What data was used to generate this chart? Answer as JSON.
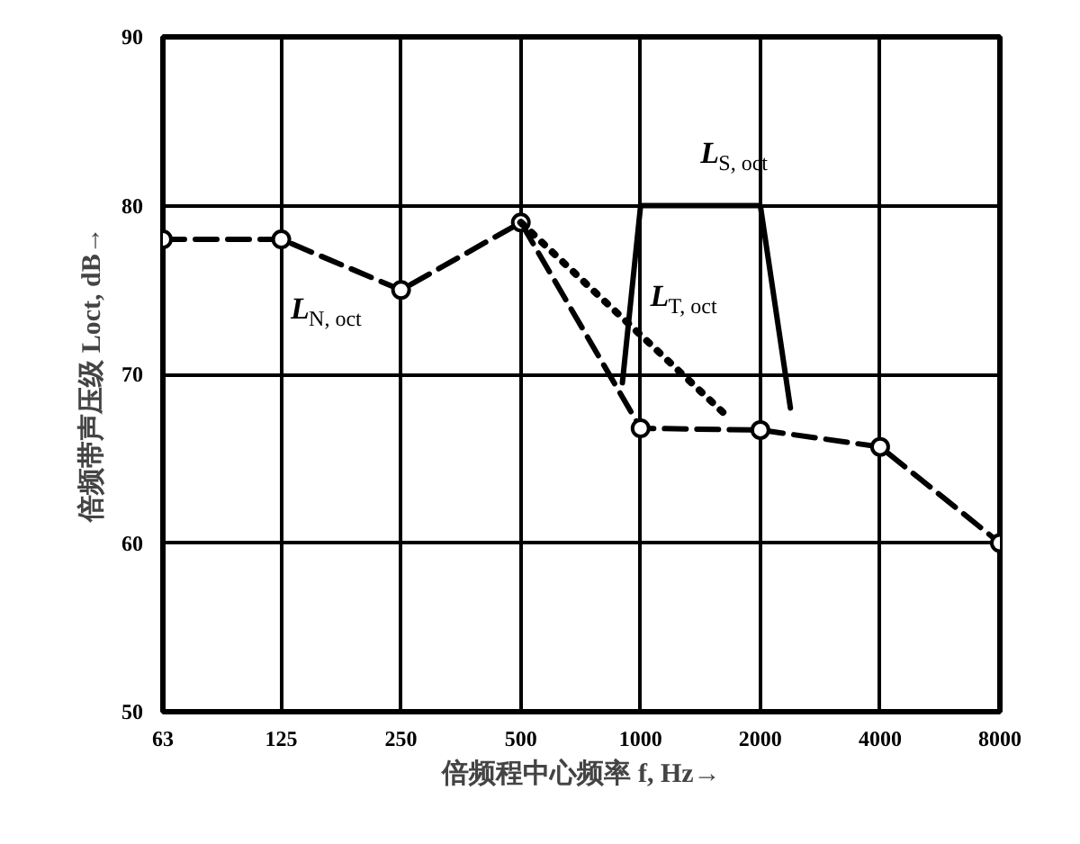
{
  "chart_data": {
    "type": "line",
    "xlabel": "倍频程中心频率 f, Hz→",
    "ylabel": "倍频带声压级 Loct, dB→",
    "log": "x",
    "xlim": [
      63,
      8000
    ],
    "xticks": [
      63,
      125,
      250,
      500,
      1000,
      2000,
      4000,
      8000
    ],
    "ylim": [
      50,
      90
    ],
    "yticks": [
      50,
      60,
      70,
      80,
      90
    ],
    "grid": true,
    "series": [
      {
        "name": "L$_{N, oct}$",
        "color": "#000000",
        "line_style": "dashed",
        "marker": "circle",
        "x": [
          63,
          125,
          250,
          500,
          1000,
          2000,
          4000,
          8000
        ],
        "values": [
          78,
          78,
          75,
          79,
          66.8,
          66.7,
          65.7,
          60
        ]
      },
      {
        "name": "L$_{S, oct}$",
        "color": "#000000",
        "line_style": "solid",
        "marker": "none",
        "x": [
          900,
          1000,
          2000,
          2380
        ],
        "values": [
          69.5,
          80,
          80,
          68
        ]
      },
      {
        "name": "L$_{T, oct}$",
        "color": "#000000",
        "line_style": "dotted",
        "marker": "none",
        "x": [
          500,
          1670
        ],
        "values": [
          79,
          67.4
        ]
      }
    ]
  }
}
